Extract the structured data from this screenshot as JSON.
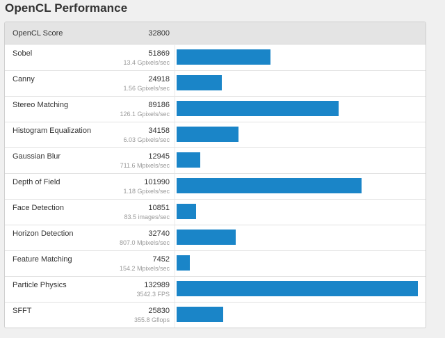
{
  "title": "OpenCL Performance",
  "summary": {
    "label": "OpenCL Score",
    "value": "32800"
  },
  "bar_color": "#1a85c8",
  "chart_data": {
    "type": "bar",
    "orientation": "horizontal",
    "max_value": 132989,
    "categories": [
      "Sobel",
      "Canny",
      "Stereo Matching",
      "Histogram Equalization",
      "Gaussian Blur",
      "Depth of Field",
      "Face Detection",
      "Horizon Detection",
      "Feature Matching",
      "Particle Physics",
      "SFFT"
    ],
    "values": [
      51869,
      24918,
      89186,
      34158,
      12945,
      101990,
      10851,
      32740,
      7452,
      132989,
      25830
    ],
    "rates": [
      "13.4 Gpixels/sec",
      "1.56 Gpixels/sec",
      "126.1 Gpixels/sec",
      "6.03 Gpixels/sec",
      "711.6 Mpixels/sec",
      "1.18 Gpixels/sec",
      "83.5 images/sec",
      "807.0 Mpixels/sec",
      "154.2 Mpixels/sec",
      "3542.3 FPS",
      "355.8 Gflops"
    ]
  }
}
